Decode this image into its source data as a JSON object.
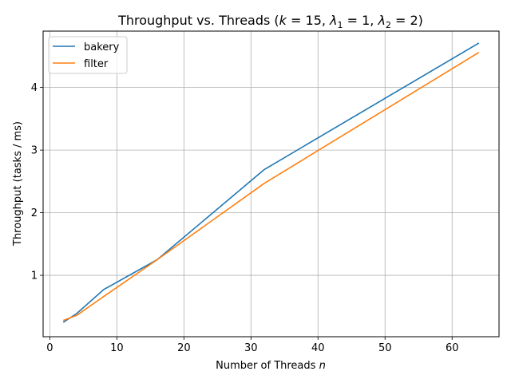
{
  "chart_data": {
    "type": "line",
    "title_main": "Throughput vs. Threads (",
    "title_k_sym": "k",
    "title_k_val": " = 15, ",
    "title_l1_sym": "λ",
    "title_l1_sub": "1",
    "title_l1_val": " = 1, ",
    "title_l2_sym": "λ",
    "title_l2_sub": "2",
    "title_l2_val": " = 2)",
    "xlabel_main": "Number of Threads ",
    "xlabel_var": "n",
    "ylabel": "Throughput (tasks / ms)",
    "xlim": [
      -1,
      67
    ],
    "ylim": [
      0.02,
      4.9
    ],
    "xticks": [
      0,
      10,
      20,
      30,
      40,
      50,
      60
    ],
    "yticks": [
      1,
      2,
      3,
      4
    ],
    "grid": true,
    "legend_position": "upper-left",
    "series": [
      {
        "name": "bakery",
        "color": "#1f77b4",
        "x": [
          2,
          4,
          8,
          16,
          32,
          64
        ],
        "y": [
          0.25,
          0.39,
          0.77,
          1.25,
          2.69,
          4.71
        ]
      },
      {
        "name": "filter",
        "color": "#ff7f0e",
        "x": [
          2,
          4,
          8,
          16,
          32,
          64
        ],
        "y": [
          0.28,
          0.36,
          0.66,
          1.25,
          2.47,
          4.56
        ]
      }
    ]
  }
}
